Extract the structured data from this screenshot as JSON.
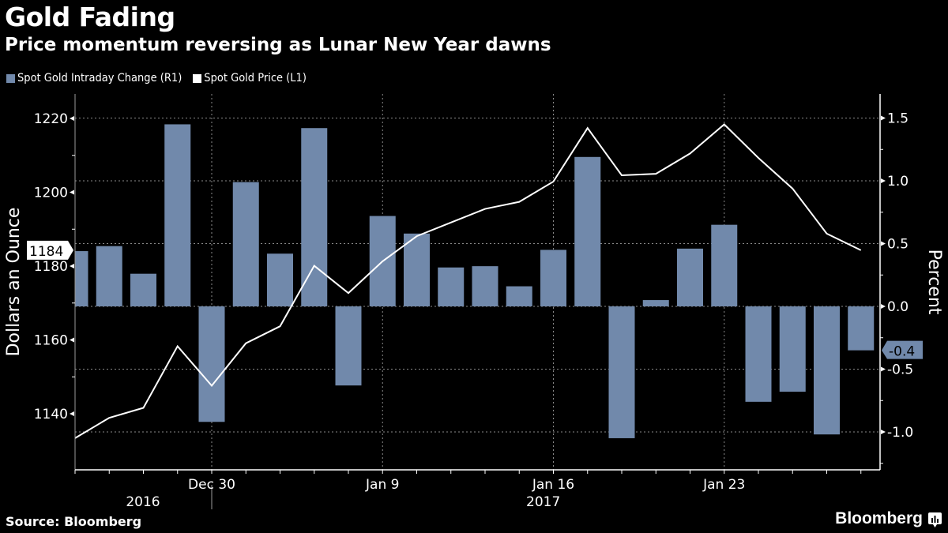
{
  "header": {
    "title": "Gold Fading",
    "subtitle": "Price momentum reversing as Lunar New Year dawns"
  },
  "footer": {
    "source": "Source: Bloomberg",
    "brand": "Bloomberg"
  },
  "colors": {
    "background": "#000000",
    "bar": "#7189ab",
    "line": "#ffffff",
    "grid": "#8a8a8a",
    "text": "#ffffff"
  },
  "chart_data": {
    "type": "bar+line",
    "title": "Gold Fading",
    "subtitle": "Price momentum reversing as Lunar New Year dawns",
    "legend_position": "top-left",
    "grid": true,
    "x": {
      "count": 24,
      "tick_labels": [
        {
          "index": 4,
          "label": "Dec 30"
        },
        {
          "index": 9,
          "label": "Jan 9"
        },
        {
          "index": 14,
          "label": "Jan 16"
        },
        {
          "index": 19,
          "label": "Jan 23"
        }
      ],
      "year_labels": [
        {
          "label": "2016",
          "position": "left-of-separator"
        },
        {
          "label": "2017",
          "position": "at-Jan-16"
        }
      ]
    },
    "y_left": {
      "label": "Dollars an Ounce",
      "ylim": [
        1125,
        1234
      ],
      "ticks": [
        1220,
        1200,
        1180,
        1160,
        1140
      ],
      "minor_ticks": [
        1210,
        1190,
        1170,
        1150
      ],
      "current_value_label": "1184"
    },
    "y_right": {
      "label": "Percent",
      "ylim": [
        -1.3,
        1.7
      ],
      "ticks": [
        1.5,
        1.0,
        0.5,
        0.0,
        -0.5,
        -1.0
      ],
      "tick_labels": [
        "1.5",
        "1.0",
        "0.5",
        "0.0",
        "-0.5",
        "-1.0"
      ],
      "minor_ticks": [
        1.25,
        0.75,
        0.25,
        -0.25,
        -0.75,
        -1.25
      ],
      "current_value_label": "-0.4"
    },
    "series": [
      {
        "name": "Spot Gold Intraday Change (R1)",
        "type": "bar",
        "axis": "right",
        "color": "#7189ab",
        "values": [
          0.44,
          0.48,
          0.26,
          1.45,
          -0.92,
          0.99,
          0.42,
          1.42,
          -0.63,
          0.72,
          0.58,
          0.31,
          0.32,
          0.16,
          0.45,
          1.19,
          -1.05,
          0.05,
          0.46,
          0.65,
          -0.76,
          -0.68,
          -1.02,
          -0.35
        ]
      },
      {
        "name": "Spot Gold Price (L1)",
        "type": "line",
        "axis": "left",
        "color": "#ffffff",
        "values": [
          1133.4,
          1138.9,
          1141.6,
          1158.3,
          1147.6,
          1159.1,
          1163.7,
          1180.1,
          1172.7,
          1181.3,
          1188.1,
          1191.8,
          1195.5,
          1197.4,
          1202.9,
          1217.4,
          1204.6,
          1205.0,
          1210.5,
          1218.4,
          1209.3,
          1201.0,
          1188.8,
          1184.3
        ]
      }
    ]
  }
}
